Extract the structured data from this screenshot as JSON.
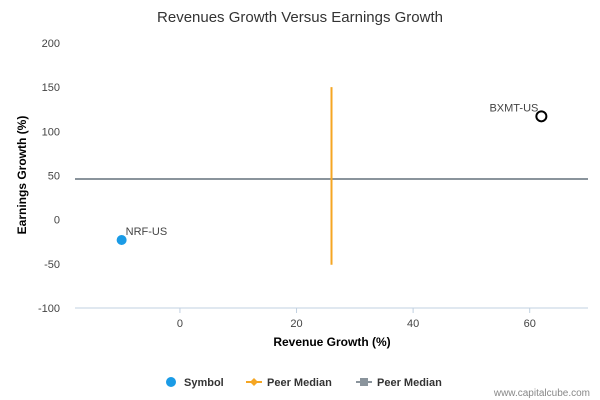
{
  "chart_data": {
    "type": "scatter",
    "title": "Revenues Growth Versus Earnings Growth",
    "xlabel": "Revenue Growth (%)",
    "ylabel": "Earnings Growth (%)",
    "xlim": [
      -18,
      70
    ],
    "ylim": [
      -100,
      200
    ],
    "xticks": [
      0,
      20,
      40,
      60
    ],
    "yticks": [
      -100,
      -50,
      0,
      50,
      100,
      150,
      200
    ],
    "points": [
      {
        "label": "NRF-US",
        "x": -10,
        "y": -23,
        "style": "filled",
        "color": "#1a9be6"
      },
      {
        "label": "BXMT-US",
        "x": 62,
        "y": 117,
        "style": "hollow",
        "color": "#000000"
      }
    ],
    "peer_median_revenue": {
      "x": 26,
      "y_from": -51,
      "y_to": 150,
      "color": "#f5a623"
    },
    "peer_median_earnings": {
      "y": 46,
      "color": "#8a949c"
    },
    "legend": [
      {
        "label": "Symbol",
        "marker": "circle",
        "color": "#1a9be6"
      },
      {
        "label": "Peer Median",
        "marker": "diamond-line",
        "color": "#f5a623"
      },
      {
        "label": "Peer Median",
        "marker": "square-line",
        "color": "#8a949c"
      }
    ],
    "grid": false
  },
  "credit": "www.capitalcube.com"
}
